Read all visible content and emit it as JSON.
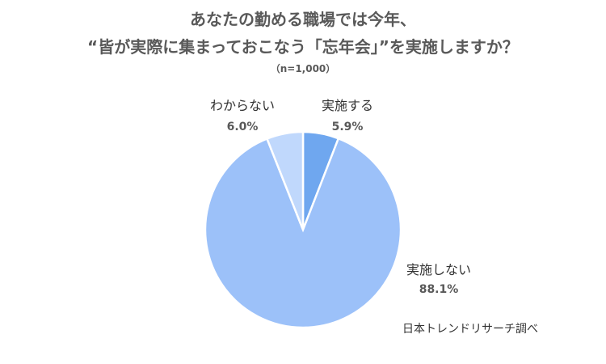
{
  "title_line1": "あなたの勤める職場では今年、",
  "title_line2": "“皆が実際に集まっておこなう「忘年会」”を実施しますか？",
  "subtitle": "（n=1,000）",
  "source": "日本トレンドリサーチ調べ",
  "chart_data": {
    "type": "pie",
    "slices": [
      {
        "label": "実施する",
        "value": 5.9,
        "value_label": "5.9%",
        "color": "#6fa7ef"
      },
      {
        "label": "実施しない",
        "value": 88.1,
        "value_label": "88.1%",
        "color": "#9cc1f9"
      },
      {
        "label": "わからない",
        "value": 6.0,
        "value_label": "6.0%",
        "color": "#c0d8fc"
      }
    ],
    "start_angle_deg": 0,
    "direction": "clockwise",
    "legend": "none"
  }
}
